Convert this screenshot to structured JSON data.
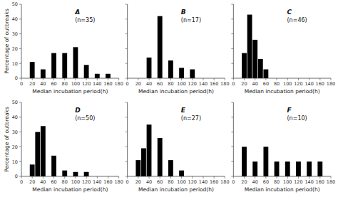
{
  "chart_data": [
    {
      "type": "bar",
      "annotations": [
        "A",
        "(n=35)"
      ],
      "x": [
        20,
        40,
        60,
        80,
        100,
        120,
        140,
        160
      ],
      "values": [
        11,
        6,
        17,
        17,
        21,
        9,
        3,
        3
      ],
      "color": "#000000",
      "xlabel": "Median incubation period(h)",
      "ylabel": "Percentage of outbreaks",
      "xlim": [
        0,
        180
      ],
      "ylim": [
        0,
        50
      ],
      "xticks": [
        0,
        20,
        40,
        60,
        80,
        100,
        120,
        140,
        160,
        180
      ],
      "yticks": [
        0,
        10,
        20,
        30,
        40,
        50
      ]
    },
    {
      "type": "bar",
      "annotations": [
        "B",
        "(n=17)"
      ],
      "x": [
        40,
        60,
        80,
        100,
        120
      ],
      "values": [
        14,
        42,
        12,
        7,
        6
      ],
      "color": "#000000",
      "xlabel": "Median incubation period(h)",
      "xlim": [
        0,
        180
      ],
      "ylim": [
        0,
        50
      ],
      "xticks": [
        0,
        20,
        40,
        60,
        80,
        100,
        120,
        140,
        160,
        180
      ],
      "yticks": [
        0,
        10,
        20,
        30,
        40,
        50
      ],
      "tick_labels": "x"
    },
    {
      "type": "bar",
      "annotations": [
        "C",
        "(n=46)"
      ],
      "x": [
        20,
        30,
        40,
        50,
        60
      ],
      "values": [
        17,
        43,
        26,
        13,
        6
      ],
      "color": "#000000",
      "xlabel": "Median incubation period(h)",
      "xlim": [
        0,
        180
      ],
      "ylim": [
        0,
        50
      ],
      "xticks": [
        0,
        20,
        40,
        60,
        80,
        100,
        120,
        140,
        160,
        180
      ],
      "yticks": [
        0,
        10,
        20,
        30,
        40,
        50
      ],
      "tick_labels": "x"
    },
    {
      "type": "bar",
      "annotations": [
        "D",
        "(n=50)"
      ],
      "x": [
        20,
        30,
        40,
        60,
        80,
        100,
        120
      ],
      "values": [
        8,
        30,
        34,
        14,
        4,
        3,
        3
      ],
      "color": "#000000",
      "xlabel": "Median incubation period(h)",
      "ylabel": "Percentage of outbreaks",
      "xlim": [
        0,
        180
      ],
      "ylim": [
        0,
        50
      ],
      "xticks": [
        0,
        20,
        40,
        60,
        80,
        100,
        120,
        140,
        160,
        180
      ],
      "yticks": [
        0,
        10,
        20,
        30,
        40,
        50
      ]
    },
    {
      "type": "bar",
      "annotations": [
        "E",
        "(n=27)"
      ],
      "x": [
        20,
        30,
        40,
        60,
        80,
        100
      ],
      "values": [
        11,
        19,
        35,
        26,
        11,
        4
      ],
      "color": "#000000",
      "xlabel": "Median incubation period(h)",
      "xlim": [
        0,
        180
      ],
      "ylim": [
        0,
        50
      ],
      "xticks": [
        0,
        20,
        40,
        60,
        80,
        100,
        120,
        140,
        160,
        180
      ],
      "yticks": [
        0,
        10,
        20,
        30,
        40,
        50
      ],
      "tick_labels": "x"
    },
    {
      "type": "bar",
      "annotations": [
        "F",
        "(n=10)"
      ],
      "x": [
        20,
        40,
        60,
        80,
        100,
        120,
        140,
        160
      ],
      "values": [
        20,
        10,
        20,
        10,
        10,
        10,
        10,
        10
      ],
      "color": "#000000",
      "xlabel": "Median incubation period(h)",
      "xlim": [
        0,
        180
      ],
      "ylim": [
        0,
        50
      ],
      "xticks": [
        0,
        20,
        40,
        60,
        80,
        100,
        120,
        140,
        160,
        180
      ],
      "yticks": [
        0,
        10,
        20,
        30,
        40,
        50
      ],
      "tick_labels": "x"
    }
  ]
}
